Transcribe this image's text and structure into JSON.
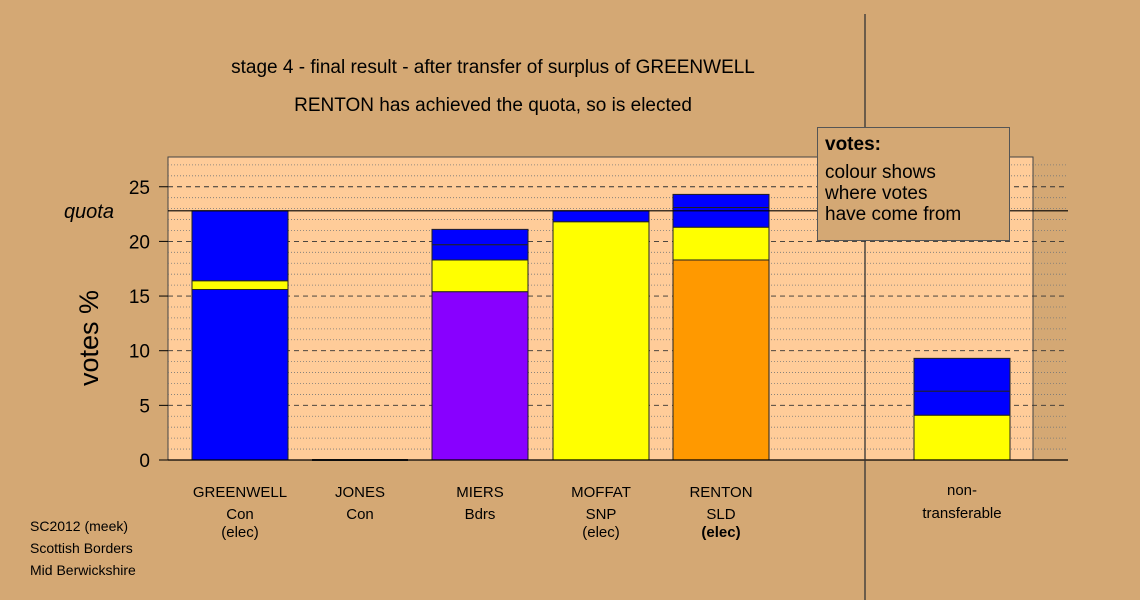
{
  "chart_data": {
    "type": "bar",
    "stacked": true,
    "title": "stage 4 - final result - after transfer of surplus of GREENWELL",
    "subtitle": "RENTON has achieved the quota, so is elected",
    "ylabel": "votes %",
    "ylim": [
      0,
      27.5
    ],
    "yticks": [
      0,
      5,
      10,
      15,
      20,
      25
    ],
    "quota": 22.8,
    "quota_label": "quota",
    "categories": [
      {
        "name": "GREENWELL",
        "party": "Con",
        "status": "(elec)"
      },
      {
        "name": "JONES",
        "party": "Con",
        "status": ""
      },
      {
        "name": "MIERS",
        "party": "Bdrs",
        "status": ""
      },
      {
        "name": "MOFFAT",
        "party": "SNP",
        "status": "(elec)"
      },
      {
        "name": "RENTON",
        "party": "SLD",
        "status": "(elec)"
      }
    ],
    "bars": [
      {
        "category": "GREENWELL",
        "segments": [
          {
            "from": 0,
            "to": 15.6,
            "color": "#0000ff"
          },
          {
            "from": 15.6,
            "to": 16.4,
            "color": "#ffff00"
          },
          {
            "from": 16.4,
            "to": 22.8,
            "color": "#0000ff"
          }
        ]
      },
      {
        "category": "JONES",
        "segments": []
      },
      {
        "category": "MIERS",
        "segments": [
          {
            "from": 0,
            "to": 15.4,
            "color": "#8800ff"
          },
          {
            "from": 15.4,
            "to": 18.3,
            "color": "#ffff00"
          },
          {
            "from": 18.3,
            "to": 19.7,
            "color": "#0000ff"
          },
          {
            "from": 19.7,
            "to": 21.1,
            "color": "#0000ff"
          }
        ]
      },
      {
        "category": "MOFFAT",
        "segments": [
          {
            "from": 0,
            "to": 21.8,
            "color": "#ffff00"
          },
          {
            "from": 21.8,
            "to": 22.8,
            "color": "#0000ff"
          }
        ]
      },
      {
        "category": "RENTON",
        "segments": [
          {
            "from": 0,
            "to": 18.3,
            "color": "#ff9900"
          },
          {
            "from": 18.3,
            "to": 21.3,
            "color": "#ffff00"
          },
          {
            "from": 21.3,
            "to": 23.1,
            "color": "#0000ff"
          },
          {
            "from": 23.1,
            "to": 24.3,
            "color": "#0000ff"
          }
        ]
      }
    ],
    "nontransferable": {
      "label_line1": "non-",
      "label_line2": "transferable",
      "segments": [
        {
          "from": 0,
          "to": 4.1,
          "color": "#ffff00"
        },
        {
          "from": 4.1,
          "to": 6.3,
          "color": "#0000ff"
        },
        {
          "from": 6.3,
          "to": 9.3,
          "color": "#0000ff"
        }
      ]
    },
    "grid": true,
    "legend": {
      "title": "votes:",
      "lines": [
        "colour shows",
        "where votes",
        "have come from"
      ],
      "placement": "top-right"
    },
    "colors": {
      "page_background": "#d4a874",
      "plot_background": "#ffcc99"
    }
  },
  "source": {
    "line1": "SC2012 (meek)",
    "line2": "Scottish Borders",
    "line3": "Mid Berwickshire"
  }
}
